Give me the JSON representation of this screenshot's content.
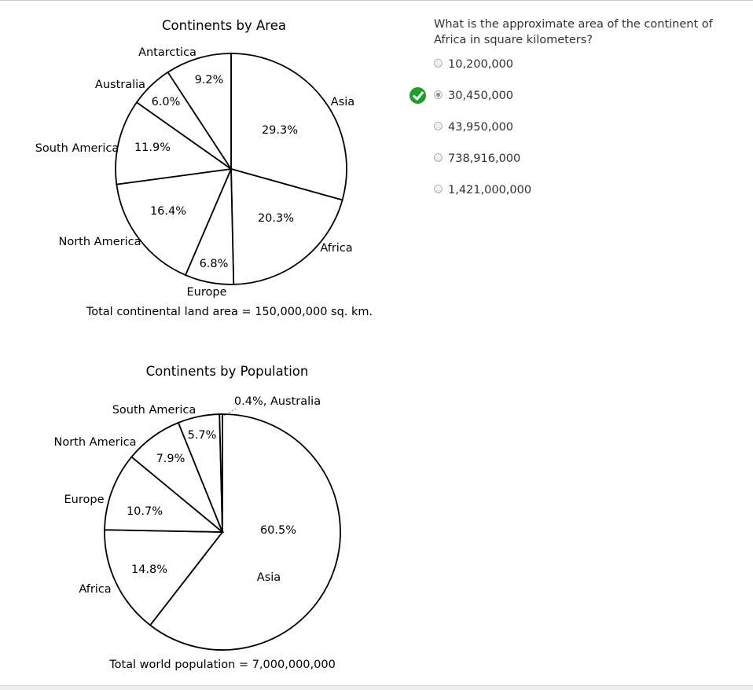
{
  "quiz": {
    "question": "What is the approximate area of the continent of Africa in square kilometers?",
    "options": [
      {
        "label": "10,200,000",
        "selected": false,
        "correct": false
      },
      {
        "label": "30,450,000",
        "selected": true,
        "correct": true
      },
      {
        "label": "43,950,000",
        "selected": false,
        "correct": false
      },
      {
        "label": "738,916,000",
        "selected": false,
        "correct": false
      },
      {
        "label": "1,421,000,000",
        "selected": false,
        "correct": false
      }
    ],
    "correct_icon": "checkmark-icon",
    "correct_color": "#1e9e2a"
  },
  "chart_data": [
    {
      "type": "pie",
      "title": "Continents by Area",
      "slices": [
        {
          "name": "Asia",
          "value": 29.3,
          "label": "29.3%"
        },
        {
          "name": "Africa",
          "value": 20.3,
          "label": "20.3%"
        },
        {
          "name": "Europe",
          "value": 6.8,
          "label": "6.8%"
        },
        {
          "name": "North America",
          "value": 16.4,
          "label": "16.4%"
        },
        {
          "name": "South America",
          "value": 11.9,
          "label": "11.9%"
        },
        {
          "name": "Australia",
          "value": 6.0,
          "label": "6.0%"
        },
        {
          "name": "Antarctica",
          "value": 9.2,
          "label": "9.2%"
        }
      ],
      "caption": "Total continental land area = 150,000,000 sq. km."
    },
    {
      "type": "pie",
      "title": "Continents by Population",
      "slices": [
        {
          "name": "Asia",
          "value": 60.5,
          "label": "60.5%"
        },
        {
          "name": "Africa",
          "value": 14.8,
          "label": "14.8%"
        },
        {
          "name": "Europe",
          "value": 10.7,
          "label": "10.7%"
        },
        {
          "name": "North America",
          "value": 7.9,
          "label": "7.9%"
        },
        {
          "name": "South America",
          "value": 5.7,
          "label": "5.7%"
        },
        {
          "name": "Australia",
          "value": 0.4,
          "label": "0.4%, Australia"
        }
      ],
      "caption": "Total world population = 7,000,000,000"
    }
  ]
}
